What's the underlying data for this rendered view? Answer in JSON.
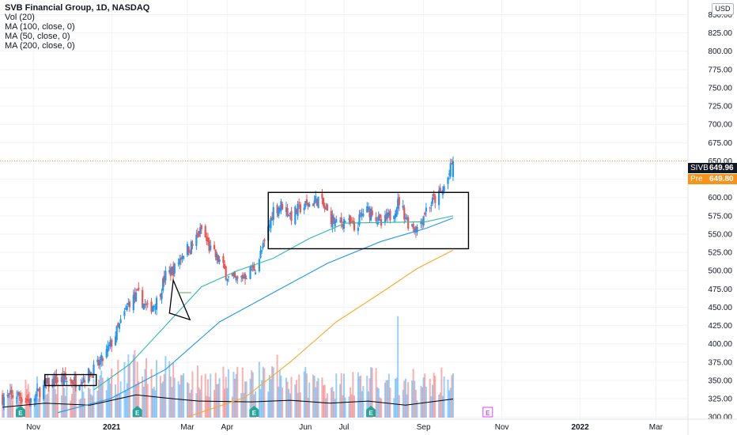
{
  "header": {
    "title": "SVB Financial Group, 1D, NASDAQ",
    "indicators": [
      "Vol (20)",
      "MA (100, close, 0)",
      "MA (50, close, 0)",
      "MA (200, close, 0)"
    ],
    "currency_button": "USD"
  },
  "price_tags": {
    "last_symbol": "SIVB",
    "last_value": "649.96",
    "pre_label": "Pre",
    "pre_value": "649.80"
  },
  "colors": {
    "up": "#26a69a",
    "up_candle": "#2196f3",
    "down": "#ef5350",
    "ma50": "#2bbbad",
    "ma100": "#2196f3",
    "ma200": "#f9a825",
    "vol_ma": "#000000",
    "last_price_line": "#f7931a"
  },
  "earnings_marker": "E",
  "chart_data": {
    "type": "candlestick",
    "title": "SVB Financial Group, 1D, NASDAQ",
    "y_axis": {
      "ticks": [
        300,
        325,
        350,
        375,
        400,
        425,
        450,
        475,
        500,
        525,
        550,
        575,
        600,
        625,
        650,
        675,
        700,
        725,
        750,
        775,
        800,
        825,
        850
      ],
      "tick_labels": [
        "300.00",
        "325.00",
        "350.00",
        "375.00",
        "400.00",
        "425.00",
        "450.00",
        "475.00",
        "500.00",
        "525.00",
        "550.00",
        "575.00",
        "600.00",
        "625.00",
        "650.00",
        "675.00",
        "700.00",
        "725.00",
        "750.00",
        "775.00",
        "800.00",
        "825.00",
        "850.00"
      ],
      "range": [
        297,
        870
      ]
    },
    "x_axis": {
      "tick_labels": [
        "Nov",
        "2021",
        "Mar",
        "Apr",
        "Jun",
        "Jul",
        "Sep",
        "Nov",
        "2022",
        "Mar"
      ],
      "tick_dates": [
        "2020-11-01",
        "2021-01-01",
        "2021-03-01",
        "2021-04-01",
        "2021-06-01",
        "2021-07-01",
        "2021-09-01",
        "2021-11-01",
        "2022-01-01",
        "2022-03-01"
      ],
      "range": [
        "2020-10-06",
        "2022-03-26"
      ]
    },
    "close_path": [
      [
        "2020-10-08",
        326
      ],
      [
        "2020-10-20",
        330
      ],
      [
        "2020-10-30",
        320
      ],
      [
        "2020-11-06",
        336
      ],
      [
        "2020-11-13",
        346
      ],
      [
        "2020-11-20",
        351
      ],
      [
        "2020-11-27",
        350
      ],
      [
        "2020-12-04",
        349
      ],
      [
        "2020-12-11",
        355
      ],
      [
        "2020-12-18",
        364
      ],
      [
        "2020-12-24",
        376
      ],
      [
        "2020-12-31",
        398
      ],
      [
        "2021-01-08",
        428
      ],
      [
        "2021-01-15",
        458
      ],
      [
        "2021-01-22",
        466
      ],
      [
        "2021-01-29",
        447
      ],
      [
        "2021-02-05",
        458
      ],
      [
        "2021-02-12",
        493
      ],
      [
        "2021-02-19",
        503
      ],
      [
        "2021-02-26",
        526
      ],
      [
        "2021-03-05",
        535
      ],
      [
        "2021-03-12",
        556
      ],
      [
        "2021-03-19",
        528
      ],
      [
        "2021-03-26",
        513
      ],
      [
        "2021-04-02",
        490
      ],
      [
        "2021-04-09",
        486
      ],
      [
        "2021-04-16",
        496
      ],
      [
        "2021-04-23",
        505
      ],
      [
        "2021-04-30",
        536
      ],
      [
        "2021-05-07",
        584
      ],
      [
        "2021-05-14",
        590
      ],
      [
        "2021-05-21",
        575
      ],
      [
        "2021-05-28",
        586
      ],
      [
        "2021-06-04",
        591
      ],
      [
        "2021-06-11",
        598
      ],
      [
        "2021-06-18",
        579
      ],
      [
        "2021-06-25",
        563
      ],
      [
        "2021-07-02",
        570
      ],
      [
        "2021-07-09",
        556
      ],
      [
        "2021-07-16",
        580
      ],
      [
        "2021-07-23",
        583
      ],
      [
        "2021-07-30",
        562
      ],
      [
        "2021-08-06",
        575
      ],
      [
        "2021-08-13",
        595
      ],
      [
        "2021-08-20",
        566
      ],
      [
        "2021-08-27",
        558
      ],
      [
        "2021-09-03",
        584
      ],
      [
        "2021-09-10",
        598
      ],
      [
        "2021-09-15",
        606
      ],
      [
        "2021-09-20",
        627
      ],
      [
        "2021-09-24",
        649.96
      ]
    ],
    "volume_path": [
      [
        "2020-10-08",
        0.25
      ],
      [
        "2020-11-10",
        0.35
      ],
      [
        "2020-12-15",
        0.3
      ],
      [
        "2021-01-20",
        0.55
      ],
      [
        "2021-02-20",
        0.45
      ],
      [
        "2021-03-10",
        0.4
      ],
      [
        "2021-04-20",
        0.38
      ],
      [
        "2021-05-20",
        0.42
      ],
      [
        "2021-06-20",
        0.35
      ],
      [
        "2021-07-20",
        0.4
      ],
      [
        "2021-08-18",
        0.3
      ],
      [
        "2021-09-24",
        0.45
      ]
    ],
    "volume_spikes": [
      [
        "2021-08-12",
        1.0
      ],
      [
        "2021-05-10",
        0.62
      ],
      [
        "2021-03-20",
        0.58
      ],
      [
        "2021-04-26",
        0.55
      ],
      [
        "2021-08-24",
        0.48
      ],
      [
        "2021-07-08",
        0.45
      ],
      [
        "2021-01-21",
        0.55
      ],
      [
        "2021-09-23",
        0.42
      ]
    ],
    "series": [
      {
        "name": "MA (50, close, 0)",
        "points": [
          [
            "2020-12-18",
            337
          ],
          [
            "2021-01-15",
            372
          ],
          [
            "2021-02-12",
            425
          ],
          [
            "2021-03-12",
            478
          ],
          [
            "2021-04-09",
            500
          ],
          [
            "2021-05-07",
            517
          ],
          [
            "2021-06-04",
            544
          ],
          [
            "2021-07-02",
            565
          ],
          [
            "2021-08-06",
            566
          ],
          [
            "2021-09-03",
            567
          ],
          [
            "2021-09-24",
            575
          ]
        ]
      },
      {
        "name": "MA (100, close, 0)",
        "points": [
          [
            "2020-11-20",
            306
          ],
          [
            "2020-12-31",
            325
          ],
          [
            "2021-02-12",
            365
          ],
          [
            "2021-03-26",
            430
          ],
          [
            "2021-05-07",
            470
          ],
          [
            "2021-06-18",
            510
          ],
          [
            "2021-07-30",
            540
          ],
          [
            "2021-09-03",
            558
          ],
          [
            "2021-09-24",
            572
          ]
        ]
      },
      {
        "name": "MA (200, close, 0)",
        "points": [
          [
            "2021-03-01",
            300
          ],
          [
            "2021-04-15",
            327
          ],
          [
            "2021-05-20",
            375
          ],
          [
            "2021-06-25",
            430
          ],
          [
            "2021-07-30",
            470
          ],
          [
            "2021-08-27",
            503
          ],
          [
            "2021-09-24",
            528
          ]
        ]
      }
    ],
    "last_price": 649.96,
    "pre_market_price": 649.8,
    "earnings_dates": [
      "2020-10-22",
      "2021-01-21",
      "2021-04-22",
      "2021-07-22",
      "2021-10-21"
    ],
    "drawn_boxes": [
      {
        "from": "2020-11-10",
        "to": "2020-12-20",
        "low": 343,
        "high": 358
      },
      {
        "from": "2021-05-03",
        "to": "2021-10-06",
        "low": 530,
        "high": 607
      }
    ],
    "drawn_triangle": [
      [
        "2021-02-18",
        487
      ],
      [
        "2021-03-03",
        433
      ],
      [
        "2021-02-15",
        442
      ]
    ],
    "drawn_tick": {
      "from": "2021-02-22",
      "to": "2021-03-04",
      "value": 470
    },
    "legend_position": "top-left"
  }
}
